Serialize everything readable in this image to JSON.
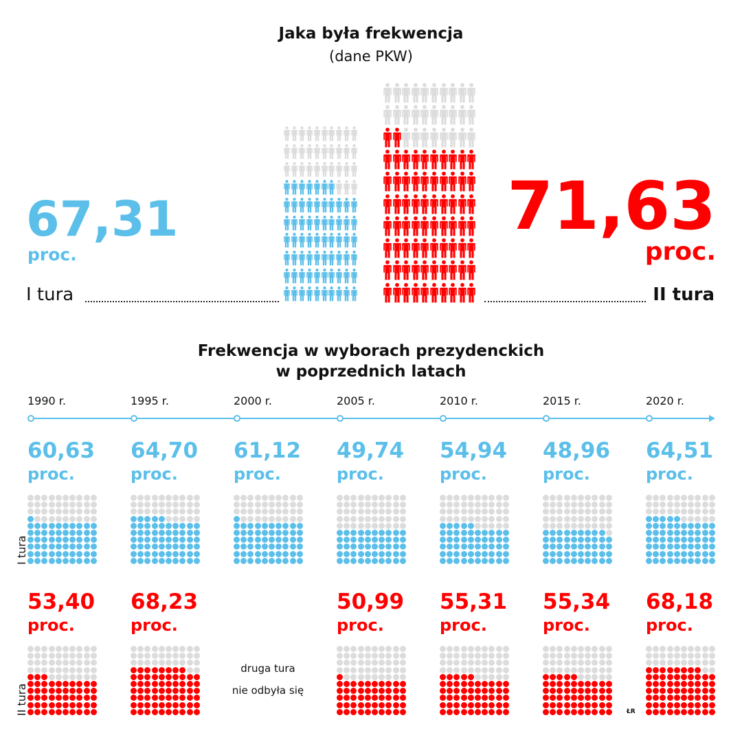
{
  "colors": {
    "blue": "#5bbfea",
    "red": "#ff0000",
    "gray": "#dcdcdc",
    "timeline": "#5bbfea"
  },
  "top": {
    "title": "Jaka była frekwencja",
    "subtitle": "(dane PKW)",
    "round1": {
      "value": "67,31",
      "unit": "proc.",
      "label": "I tura",
      "icons_filled": 67
    },
    "round2": {
      "value": "71,63",
      "unit": "proc.",
      "label": "II tura",
      "icons_filled": 72
    },
    "icon": "person-icon"
  },
  "chart_data": {
    "type": "pictogram",
    "title": "Frekwencja w wyborach prezydenckich",
    "title_line2": "w poprzednich latach",
    "row_label_1": "I tura",
    "row_label_2": "II tura",
    "no_second_round_line1": "druga tura",
    "no_second_round_line2": "nie odbyła się",
    "unit": "proc.",
    "years": [
      {
        "year": "1990 r.",
        "r1": "60,63",
        "r2": "53,40"
      },
      {
        "year": "1995 r.",
        "r1": "64,70",
        "r2": "68,23"
      },
      {
        "year": "2000 r.",
        "r1": "61,12",
        "r2": null
      },
      {
        "year": "2005 r.",
        "r1": "49,74",
        "r2": "50,99"
      },
      {
        "year": "2010 r.",
        "r1": "54,94",
        "r2": "55,31"
      },
      {
        "year": "2015 r.",
        "r1": "48,96",
        "r2": "55,34"
      },
      {
        "year": "2020 r.",
        "r1": "64,51",
        "r2": "68,18"
      }
    ]
  },
  "credit": "ŁR"
}
